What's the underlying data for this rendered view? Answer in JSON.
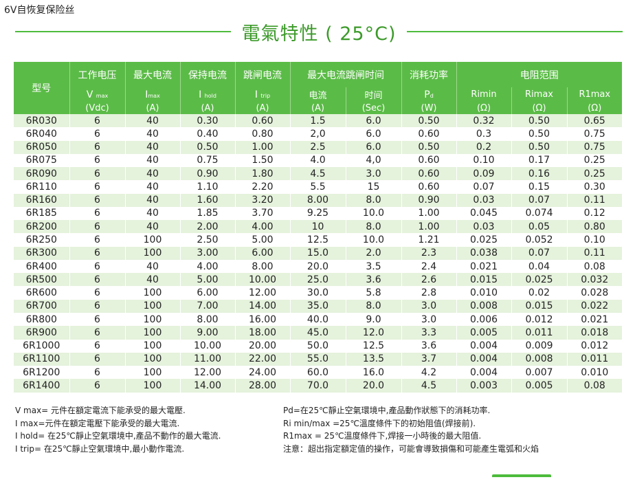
{
  "page": {
    "heading": "6V自恢复保险丝"
  },
  "title": "電氣特性 ( 25°C)",
  "table": {
    "group_headers": {
      "model": "型号",
      "working_voltage": "工作电压",
      "max_current": "最大电流",
      "hold_current": "保持电流",
      "trip_current": "跳闸电流",
      "max_current_trip_time": "最大电流跳闸时间",
      "power_dissipation": "消耗功率",
      "resistance_range": "电阻范围"
    },
    "symbols": {
      "vmax": {
        "base": "V",
        "sub": "max"
      },
      "imax": {
        "base": "I",
        "sub": "max"
      },
      "ihold": {
        "base": "I",
        "sub": "hold"
      },
      "itrip": {
        "base": "I",
        "sub": "trip"
      },
      "current": "电流",
      "time": "时间",
      "pd": {
        "base": "P",
        "sub": "d"
      },
      "rimin": "Rimin",
      "rimax": "Rimax",
      "r1max": "R1max"
    },
    "units": {
      "vmax": "(Vdc)",
      "imax": "(A)",
      "ihold": "(A)",
      "itrip": "(A)",
      "current": "(A)",
      "time": "(Sec)",
      "pd": "(W)",
      "rimin": "(Ω)",
      "rimax": "(Ω)",
      "r1max": "(Ω)"
    },
    "rows": [
      [
        "6R030",
        "6",
        "40",
        "0.30",
        "0.60",
        "1.5",
        "6.0",
        "0.50",
        "0.32",
        "0.50",
        "0.65"
      ],
      [
        "6R040",
        "6",
        "40",
        "0.40",
        "0.80",
        "2,0",
        "6.0",
        "0.60",
        "0.3",
        "0.50",
        "0.75"
      ],
      [
        "6R050",
        "6",
        "40",
        "0.50",
        "1.00",
        "2.5",
        "6.0",
        "0.50",
        "0.2",
        "0.50",
        "0.75"
      ],
      [
        "6R075",
        "6",
        "40",
        "0.75",
        "1.50",
        "4.0",
        "4,0",
        "0.60",
        "0.10",
        "0.17",
        "0.25"
      ],
      [
        "6R090",
        "6",
        "40",
        "0.90",
        "1.80",
        "4.5",
        "3.0",
        "0.60",
        "0.09",
        "0.16",
        "0.25"
      ],
      [
        "6R110",
        "6",
        "40",
        "1.10",
        "2.20",
        "5.5",
        "15",
        "0.60",
        "0.07",
        "0.15",
        "0.30"
      ],
      [
        "6R160",
        "6",
        "40",
        "1.60",
        "3.20",
        "8.00",
        "8.0",
        "0.90",
        "0.03",
        "0.07",
        "0.11"
      ],
      [
        "6R185",
        "6",
        "40",
        "1.85",
        "3.70",
        "9.25",
        "10.0",
        "1.00",
        "0.045",
        "0.074",
        "0.12"
      ],
      [
        "6R200",
        "6",
        "40",
        "2.00",
        "4.00",
        "10",
        "8.0",
        "1.00",
        "0.03",
        "0.05",
        "0.80"
      ],
      [
        "6R250",
        "6",
        "100",
        "2.50",
        "5.00",
        "12.5",
        "10.0",
        "1.21",
        "0.025",
        "0.052",
        "0.10"
      ],
      [
        "6R300",
        "6",
        "100",
        "3.00",
        "6.00",
        "15.0",
        "2.0",
        "2.3",
        "0.038",
        "0.07",
        "0.11"
      ],
      [
        "6R400",
        "6",
        "40",
        "4.00",
        "8.00",
        "20.0",
        "3.5",
        "2.4",
        "0.021",
        "0.04",
        "0.08"
      ],
      [
        "6R500",
        "6",
        "40",
        "5.00",
        "10.00",
        "25.0",
        "3.6",
        "2.6",
        "0.015",
        "0.025",
        "0.032"
      ],
      [
        "6R600",
        "6",
        "100",
        "6.00",
        "12.00",
        "30.0",
        "5.8",
        "2.8",
        "0.010",
        "0.02",
        "0.028"
      ],
      [
        "6R700",
        "6",
        "100",
        "7.00",
        "14.00",
        "35.0",
        "8.0",
        "3.0",
        "0.008",
        "0.015",
        "0.022"
      ],
      [
        "6R800",
        "6",
        "100",
        "8.00",
        "16.00",
        "40.0",
        "9.0",
        "3.0",
        "0.006",
        "0.012",
        "0.021"
      ],
      [
        "6R900",
        "6",
        "100",
        "9.00",
        "18.00",
        "45.0",
        "12.0",
        "3.3",
        "0.005",
        "0.011",
        "0.018"
      ],
      [
        "6R1000",
        "6",
        "100",
        "10.00",
        "20.00",
        "50.0",
        "12.5",
        "3.6",
        "0.004",
        "0.009",
        "0.012"
      ],
      [
        "6R1100",
        "6",
        "100",
        "11.00",
        "22.00",
        "55.0",
        "13.5",
        "3.7",
        "0.004",
        "0.008",
        "0.011"
      ],
      [
        "6R1200",
        "6",
        "100",
        "12.00",
        "24.00",
        "60.0",
        "16.0",
        "4.2",
        "0.004",
        "0.007",
        "0.010"
      ],
      [
        "6R1400",
        "6",
        "100",
        "14.00",
        "28.00",
        "70.0",
        "20.0",
        "4.5",
        "0.003",
        "0.005",
        "0.08"
      ]
    ]
  },
  "notes": {
    "left": [
      "V max= 元件在額定電流下能承受的最大電壓.",
      "I max=元件在額定電壓下能承受的最大電流.",
      "I hold= 在25℃靜止空氣環境中,產品不動作的最大電流.",
      "I trip= 在25℃靜止空氣環境中,最小動作電流."
    ],
    "right": [
      "Pd=在25℃靜止空氣環境中,產品動作狀態下的消耗功率.",
      "Ri min/max  =25℃溫度條件下的初始阻值(焊接前).",
      "R1max  = 25℃溫度條件下,焊接一小時後的最大阻值.",
      "注意：超出指定額定值的操作，可能會導致損傷和可能產生電弧和火焰"
    ]
  },
  "colors": {
    "header_green": "#5bbb47",
    "title_green": "#3c9a2a",
    "stripe": "#e5f2dc"
  }
}
